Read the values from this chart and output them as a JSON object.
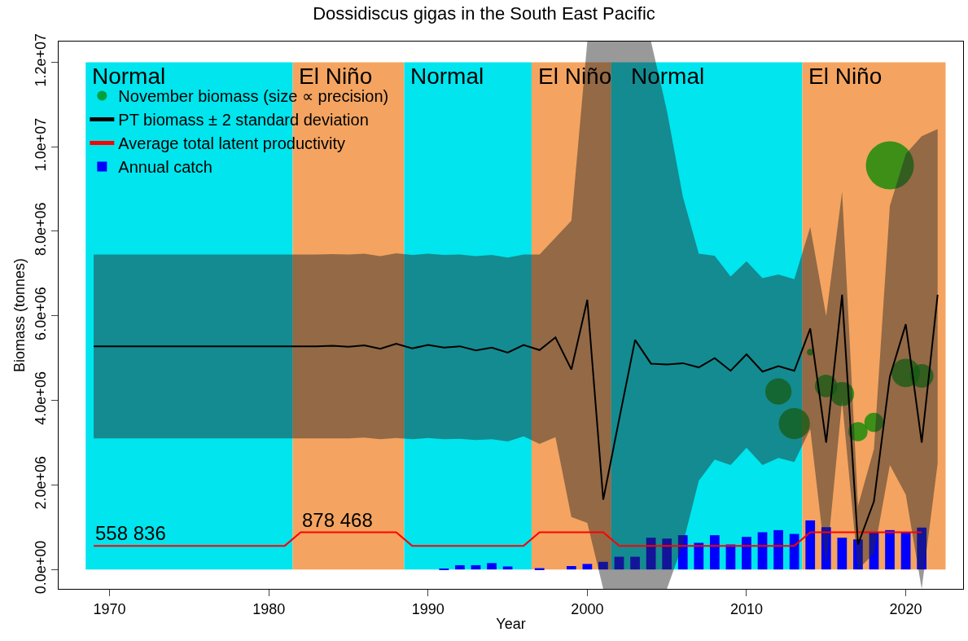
{
  "chart_data": {
    "type": "line",
    "title": "Dossidiscus gigas in the South East Pacific",
    "xlabel": "Year",
    "ylabel": "Biomass (tonnes)",
    "x": [
      1969,
      1970,
      1971,
      1972,
      1973,
      1974,
      1975,
      1976,
      1977,
      1978,
      1979,
      1980,
      1981,
      1982,
      1983,
      1984,
      1985,
      1986,
      1987,
      1988,
      1989,
      1990,
      1991,
      1992,
      1993,
      1994,
      1995,
      1996,
      1997,
      1998,
      1999,
      2000,
      2001,
      2002,
      2003,
      2004,
      2005,
      2006,
      2007,
      2008,
      2009,
      2010,
      2011,
      2012,
      2013,
      2014,
      2015,
      2016,
      2017,
      2018,
      2019,
      2020,
      2021,
      2022
    ],
    "series": [
      {
        "type": "bubble",
        "name": "November biomass (size ∝ precision)",
        "color": "#008800",
        "x": [
          2012,
          2013,
          2014,
          2015,
          2016,
          2017,
          2018,
          2019,
          2020,
          2021
        ],
        "values": [
          4210000,
          3450000,
          5140000,
          4340000,
          4150000,
          3260000,
          3480000,
          9560000,
          4650000,
          4580000
        ],
        "sizes": [
          0.3,
          0.42,
          0.02,
          0.22,
          0.25,
          0.16,
          0.16,
          1,
          0.35,
          0.24
        ]
      },
      {
        "type": "line",
        "name": "PT biomass ± 2 standard deviation",
        "color": "#000000",
        "values": [
          5280000,
          5280000,
          5280000,
          5280000,
          5280000,
          5280000,
          5280000,
          5280000,
          5280000,
          5280000,
          5280000,
          5280000,
          5280000,
          5280000,
          5280000,
          5290000,
          5270000,
          5300000,
          5220000,
          5340000,
          5230000,
          5310000,
          5250000,
          5280000,
          5180000,
          5250000,
          5130000,
          5310000,
          5190000,
          5490000,
          4730000,
          6380000,
          1650000,
          3550000,
          5430000,
          4870000,
          4850000,
          4880000,
          4780000,
          5000000,
          4700000,
          5090000,
          4680000,
          4810000,
          4700000,
          5700000,
          3000000,
          6500000,
          590000,
          1610000,
          4560000,
          5800000,
          3000000,
          6500000
        ],
        "lower": [
          3100000,
          3100000,
          3100000,
          3100000,
          3100000,
          3100000,
          3100000,
          3100000,
          3100000,
          3100000,
          3100000,
          3100000,
          3100000,
          3100000,
          3100000,
          3100000,
          3100000,
          3120000,
          3080000,
          3110000,
          3080000,
          3110000,
          3080000,
          3090000,
          3060000,
          3080000,
          3030000,
          3150000,
          2970000,
          3130000,
          1240000,
          1100000,
          -460000,
          -460000,
          -460000,
          -460000,
          -460000,
          600000,
          2100000,
          2600000,
          2470000,
          2880000,
          2470000,
          2640000,
          2540000,
          3320000,
          80000,
          3990000,
          0,
          380000,
          2470000,
          1770000,
          -460000,
          2510000
        ],
        "upper": [
          7450000,
          7450000,
          7450000,
          7450000,
          7450000,
          7450000,
          7450000,
          7450000,
          7450000,
          7450000,
          7450000,
          7450000,
          7450000,
          7450000,
          7450000,
          7460000,
          7450000,
          7470000,
          7410000,
          7480000,
          7440000,
          7470000,
          7440000,
          7450000,
          7410000,
          7440000,
          7380000,
          7450000,
          7450000,
          7850000,
          8250000,
          12490000,
          12490000,
          12490000,
          12490000,
          12490000,
          10850000,
          8820000,
          7470000,
          7420000,
          6930000,
          7290000,
          6890000,
          6980000,
          6870000,
          8100000,
          5990000,
          8940000,
          1500000,
          2850000,
          8600000,
          9830000,
          10250000,
          10420000
        ]
      },
      {
        "name": "Average total latent productivity",
        "color": "#ff0000",
        "x": [
          1969,
          1970,
          1971,
          1972,
          1973,
          1974,
          1975,
          1976,
          1977,
          1978,
          1979,
          1980,
          1981,
          1982,
          1983,
          1984,
          1985,
          1986,
          1987,
          1988,
          1989,
          1990,
          1991,
          1992,
          1993,
          1994,
          1995,
          1996,
          1997,
          1998,
          1999,
          2000,
          2001,
          2002,
          2003,
          2004,
          2005,
          2006,
          2007,
          2008,
          2009,
          2010,
          2011,
          2012,
          2013,
          2014,
          2015,
          2016,
          2017,
          2018,
          2019,
          2020,
          2021
        ],
        "values": [
          558836,
          558836,
          558836,
          558836,
          558836,
          558836,
          558836,
          558836,
          558836,
          558836,
          558836,
          558836,
          558836,
          878468,
          878468,
          878468,
          878468,
          878468,
          878468,
          878468,
          558836,
          558836,
          558836,
          558836,
          558836,
          558836,
          558836,
          558836,
          878468,
          878468,
          878468,
          878468,
          878468,
          558836,
          558836,
          558836,
          558836,
          558836,
          558836,
          558836,
          558836,
          558836,
          558836,
          558836,
          558836,
          878468,
          878468,
          878468,
          878468,
          878468,
          878468,
          878468,
          878468
        ]
      },
      {
        "type": "bar",
        "name": "Annual catch",
        "color": "#0000ff",
        "x": [
          1969,
          1970,
          1971,
          1972,
          1973,
          1974,
          1975,
          1976,
          1977,
          1978,
          1979,
          1980,
          1981,
          1982,
          1983,
          1984,
          1985,
          1986,
          1987,
          1988,
          1989,
          1990,
          1991,
          1992,
          1993,
          1994,
          1995,
          1996,
          1997,
          1998,
          1999,
          2000,
          2001,
          2002,
          2003,
          2004,
          2005,
          2006,
          2007,
          2008,
          2009,
          2010,
          2011,
          2012,
          2013,
          2014,
          2015,
          2016,
          2017,
          2018,
          2019,
          2020,
          2021
        ],
        "values": [
          0,
          0,
          0,
          0,
          0,
          0,
          0,
          0,
          0,
          0,
          0,
          0,
          0,
          0,
          0,
          0,
          0,
          0,
          0,
          0,
          0,
          0,
          20000,
          100000,
          100000,
          150000,
          70000,
          0,
          30000,
          0,
          80000,
          130000,
          180000,
          300000,
          300000,
          750000,
          730000,
          810000,
          630000,
          810000,
          590000,
          770000,
          880000,
          930000,
          840000,
          1160000,
          1000000,
          750000,
          710000,
          890000,
          930000,
          880000,
          990000
        ]
      }
    ],
    "bands": [
      {
        "axis": "x",
        "from": 1968.5,
        "to": 1981.5,
        "label": "Normal",
        "color": "#00e5ee"
      },
      {
        "axis": "x",
        "from": 1981.5,
        "to": 1988.5,
        "label": "El Niño",
        "color": "#f4a460"
      },
      {
        "axis": "x",
        "from": 1988.5,
        "to": 1996.5,
        "label": "Normal",
        "color": "#00e5ee"
      },
      {
        "axis": "x",
        "from": 1996.5,
        "to": 2001.5,
        "label": "El Niño",
        "color": "#f4a460"
      },
      {
        "axis": "x",
        "from": 2001.5,
        "to": 2013.5,
        "label": "Normal",
        "color": "#00e5ee"
      },
      {
        "axis": "x",
        "from": 2013.5,
        "to": 2022.5,
        "label": "El Niño",
        "color": "#f4a460"
      }
    ],
    "annotations": [
      {
        "text": "558 836",
        "x": 1969,
        "y": 558836
      },
      {
        "text": "878 468",
        "x": 1982,
        "y": 878468
      }
    ],
    "xlim": [
      1966.8,
      2023.6
    ],
    "xticks": [
      1970,
      1980,
      1990,
      2000,
      2010,
      2020
    ],
    "ylim": [
      -460000,
      12490000
    ],
    "yticks": [
      {
        "value": 0,
        "label": "0.0e+00"
      },
      {
        "value": 2000000,
        "label": "2.0e+06"
      },
      {
        "value": 4000000,
        "label": "4.0e+06"
      },
      {
        "value": 6000000,
        "label": "6.0e+06"
      },
      {
        "value": 8000000,
        "label": "8.0e+06"
      },
      {
        "value": 10000000,
        "label": "1.0e+07"
      },
      {
        "value": 12000000,
        "label": "1.2e+07"
      }
    ],
    "grid": false,
    "legend": "top left"
  }
}
